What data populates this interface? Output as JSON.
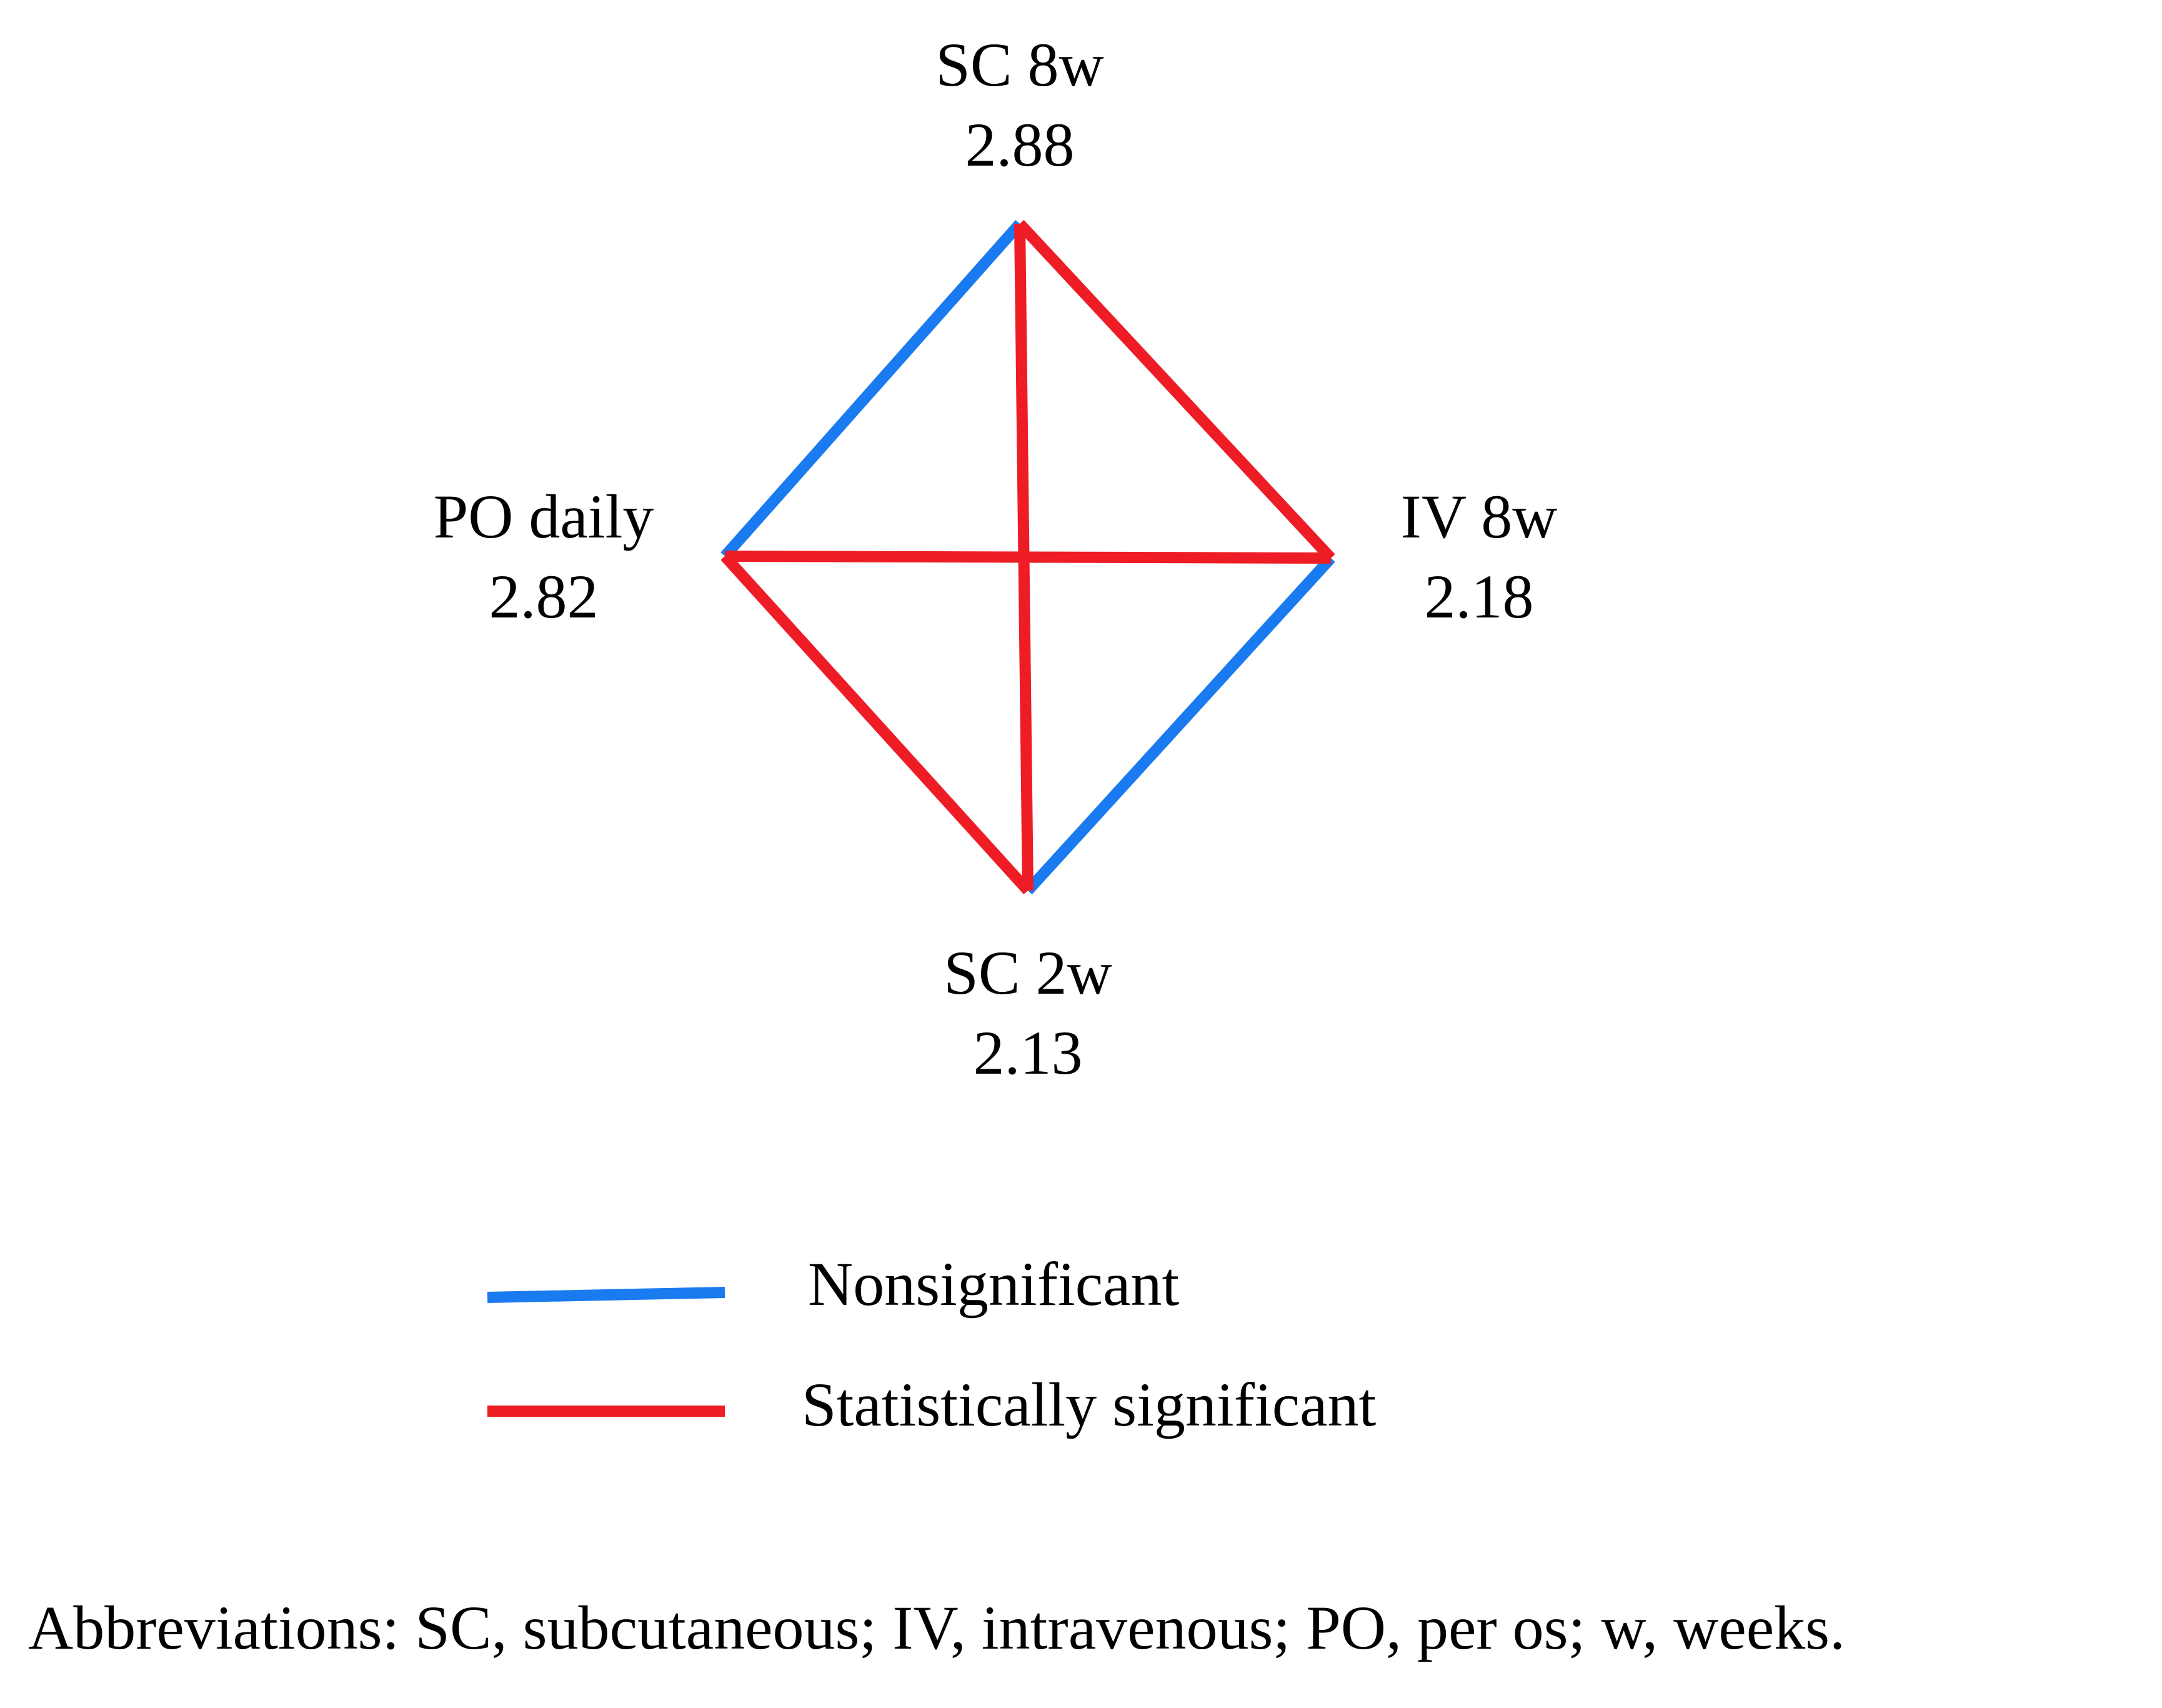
{
  "nodes": [
    {
      "id": "sc8w",
      "name": "SC 8w",
      "value": "2.88"
    },
    {
      "id": "iv8w",
      "name": "IV 8w",
      "value": "2.18"
    },
    {
      "id": "sc2w",
      "name": "SC 2w",
      "value": "2.13"
    },
    {
      "id": "podaily",
      "name": "PO daily",
      "value": "2.82"
    }
  ],
  "edges": [
    {
      "from": "podaily",
      "to": "sc8w",
      "significance": "nonsignificant"
    },
    {
      "from": "iv8w",
      "to": "sc2w",
      "significance": "nonsignificant"
    },
    {
      "from": "sc8w",
      "to": "iv8w",
      "significance": "significant"
    },
    {
      "from": "podaily",
      "to": "sc2w",
      "significance": "significant"
    },
    {
      "from": "sc8w",
      "to": "sc2w",
      "significance": "significant"
    },
    {
      "from": "podaily",
      "to": "iv8w",
      "significance": "significant"
    }
  ],
  "legend": {
    "items": [
      {
        "key": "nonsignificant",
        "label": "Nonsignificant",
        "color": "#1a7bf0"
      },
      {
        "key": "significant",
        "label": "Statistically significant",
        "color": "#ee1c25"
      }
    ]
  },
  "footnote": "Abbreviations: SC, subcutaneous; IV, intravenous; PO, per os; w, weeks."
}
